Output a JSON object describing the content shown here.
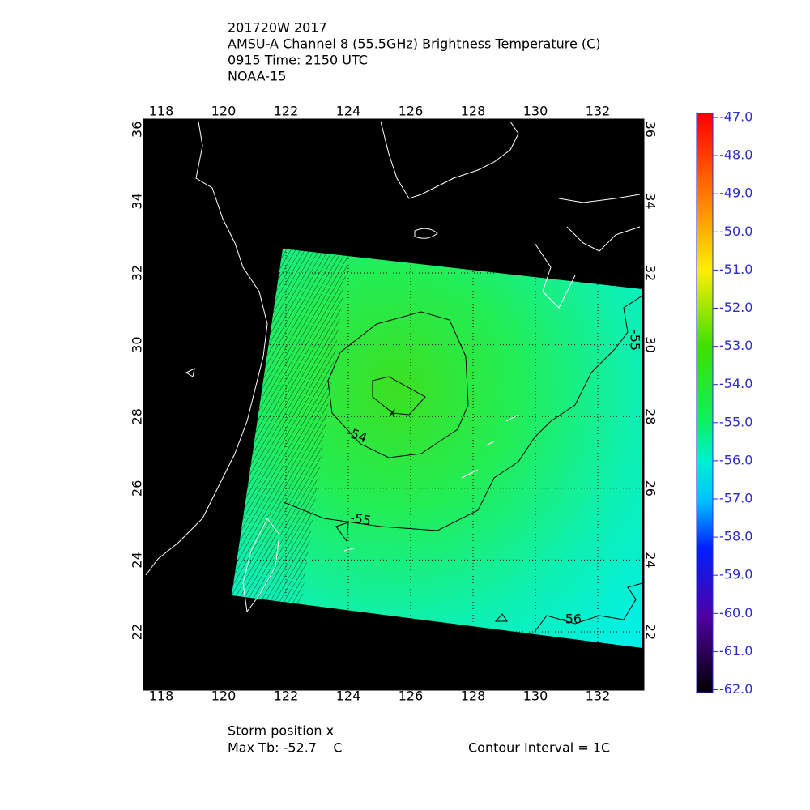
{
  "header": {
    "lines": [
      "201720W 2017",
      "AMSU-A Channel 8 (55.5GHz) Brightness Temperature (C)",
      "0915 Time: 2150 UTC",
      "NOAA-15"
    ]
  },
  "map": {
    "xticks": [
      118,
      120,
      122,
      124,
      126,
      128,
      130,
      132
    ],
    "yticks": [
      22,
      24,
      26,
      28,
      30,
      32,
      34,
      36
    ],
    "contour_labels": [
      -54,
      -55,
      -55,
      -56
    ]
  },
  "colorbar": {
    "ticks": [
      {
        "value": -47,
        "label": "-47.0"
      },
      {
        "value": -48,
        "label": "-48.0"
      },
      {
        "value": -49,
        "label": "-49.0"
      },
      {
        "value": -50,
        "label": "-50.0"
      },
      {
        "value": -51,
        "label": "-51.0"
      },
      {
        "value": -52,
        "label": "-52.0"
      },
      {
        "value": -53,
        "label": "-53.0"
      },
      {
        "value": -54,
        "label": "-54.0"
      },
      {
        "value": -55,
        "label": "-55.0"
      },
      {
        "value": -56,
        "label": "-56.0"
      },
      {
        "value": -57,
        "label": "-57.0"
      },
      {
        "value": -58,
        "label": "-58.0"
      },
      {
        "value": -59,
        "label": "-59.0"
      },
      {
        "value": -60,
        "label": "-60.0"
      },
      {
        "value": -61,
        "label": "-61.0"
      },
      {
        "value": -62,
        "label": "-62.0"
      }
    ]
  },
  "footer": {
    "storm": "Storm position x",
    "max_tb": "Max Tb: -52.7    C",
    "interval": "Contour Interval = 1C"
  }
}
